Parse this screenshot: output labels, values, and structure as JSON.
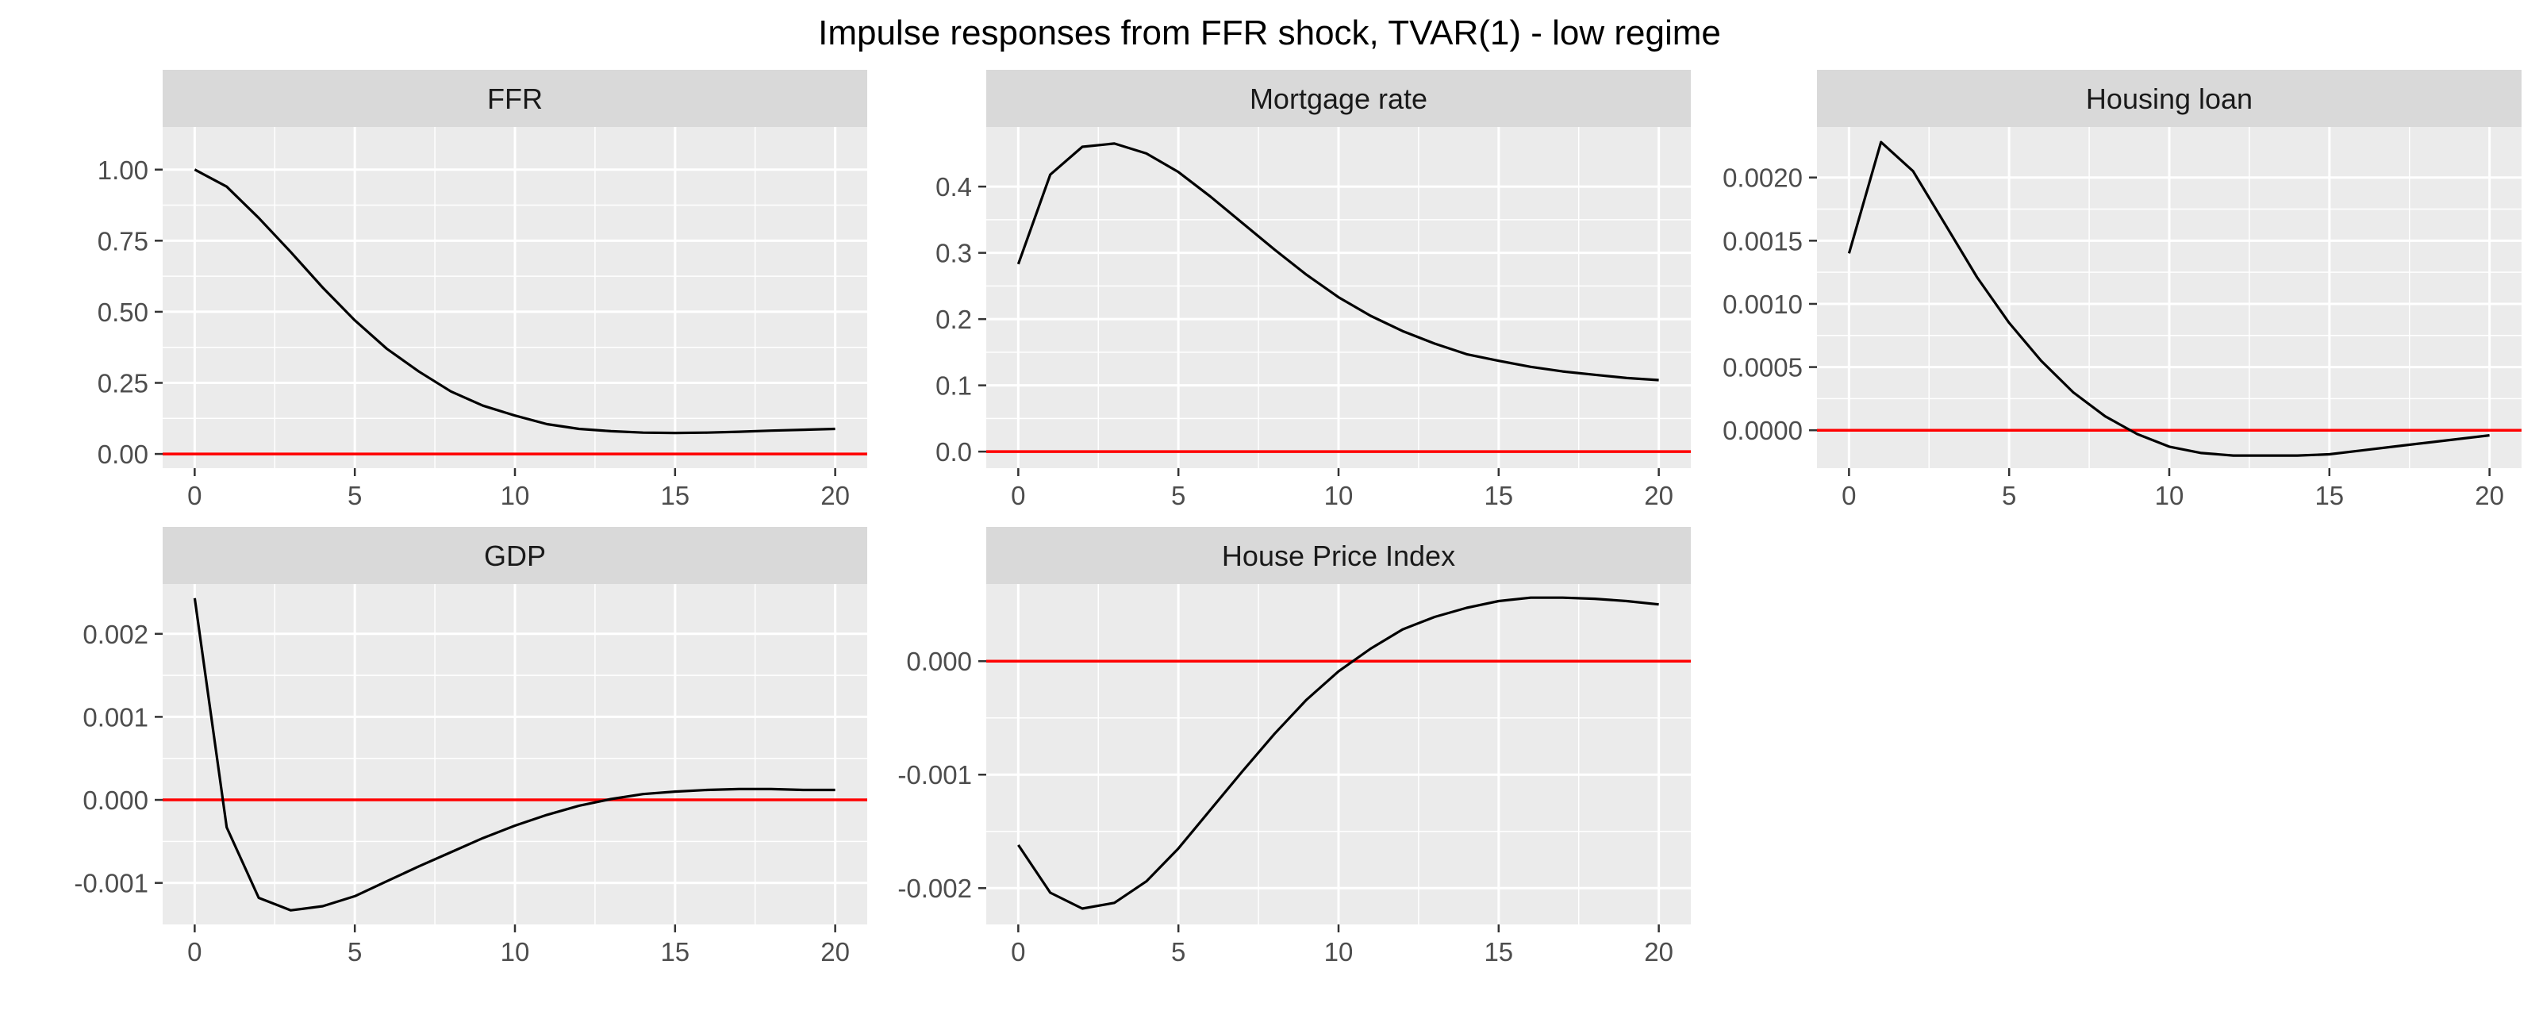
{
  "title": "Impulse responses from FFR shock, TVAR(1) - low regime",
  "colors": {
    "panel_background": "#EBEBEB",
    "strip_background": "#D9D9D9",
    "grid": "#FFFFFF",
    "line": "#000000",
    "zero_line": "#FF0000",
    "tick_text": "#4D4D4D",
    "strip_text": "#1A1A1A"
  },
  "chart_data": [
    {
      "type": "line",
      "facet": "FFR",
      "x": [
        0,
        1,
        2,
        3,
        4,
        5,
        6,
        7,
        8,
        9,
        10,
        11,
        12,
        13,
        14,
        15,
        16,
        17,
        18,
        19,
        20
      ],
      "values": [
        1.0,
        0.94,
        0.83,
        0.71,
        0.585,
        0.47,
        0.37,
        0.29,
        0.22,
        0.17,
        0.135,
        0.105,
        0.088,
        0.08,
        0.075,
        0.074,
        0.075,
        0.078,
        0.082,
        0.085,
        0.088
      ],
      "xlim": [
        -1,
        21
      ],
      "ylim": [
        -0.05,
        1.15
      ],
      "yticks": [
        0.0,
        0.25,
        0.5,
        0.75,
        1.0
      ],
      "ytick_labels": [
        "0.00",
        "0.25",
        "0.50",
        "0.75",
        "1.00"
      ],
      "xticks": [
        0,
        5,
        10,
        15,
        20
      ],
      "xtick_labels": [
        "0",
        "5",
        "10",
        "15",
        "20"
      ],
      "hline": 0,
      "grid": true
    },
    {
      "type": "line",
      "facet": "Mortgage rate",
      "x": [
        0,
        1,
        2,
        3,
        4,
        5,
        6,
        7,
        8,
        9,
        10,
        11,
        12,
        13,
        14,
        15,
        16,
        17,
        18,
        19,
        20
      ],
      "values": [
        0.283,
        0.418,
        0.46,
        0.465,
        0.45,
        0.422,
        0.385,
        0.345,
        0.305,
        0.267,
        0.233,
        0.205,
        0.182,
        0.163,
        0.147,
        0.137,
        0.128,
        0.121,
        0.116,
        0.111,
        0.108
      ],
      "xlim": [
        -1,
        21
      ],
      "ylim": [
        -0.025,
        0.49
      ],
      "yticks": [
        0.0,
        0.1,
        0.2,
        0.3,
        0.4
      ],
      "ytick_labels": [
        "0.0",
        "0.1",
        "0.2",
        "0.3",
        "0.4"
      ],
      "xticks": [
        0,
        5,
        10,
        15,
        20
      ],
      "xtick_labels": [
        "0",
        "5",
        "10",
        "15",
        "20"
      ],
      "hline": 0,
      "grid": true
    },
    {
      "type": "line",
      "facet": "Housing loan",
      "x": [
        0,
        1,
        2,
        3,
        4,
        5,
        6,
        7,
        8,
        9,
        10,
        11,
        12,
        13,
        14,
        15,
        16,
        17,
        18,
        19,
        20
      ],
      "values": [
        0.0014,
        0.00228,
        0.00205,
        0.00163,
        0.00121,
        0.00085,
        0.00055,
        0.0003,
        0.00011,
        -3e-05,
        -0.00013,
        -0.00018,
        -0.0002,
        -0.0002,
        -0.0002,
        -0.00019,
        -0.00016,
        -0.00013,
        -0.0001,
        -7e-05,
        -4e-05
      ],
      "xlim": [
        -1,
        21
      ],
      "ylim": [
        -0.0003,
        0.0024
      ],
      "yticks": [
        0.0,
        0.0005,
        0.001,
        0.0015,
        0.002
      ],
      "ytick_labels": [
        "0.0000",
        "0.0005",
        "0.0010",
        "0.0015",
        "0.0020"
      ],
      "xticks": [
        0,
        5,
        10,
        15,
        20
      ],
      "xtick_labels": [
        "0",
        "5",
        "10",
        "15",
        "20"
      ],
      "hline": 0,
      "grid": true
    },
    {
      "type": "line",
      "facet": "GDP",
      "x": [
        0,
        1,
        2,
        3,
        4,
        5,
        6,
        7,
        8,
        9,
        10,
        11,
        12,
        13,
        14,
        15,
        16,
        17,
        18,
        19,
        20
      ],
      "values": [
        0.00243,
        -0.00033,
        -0.00118,
        -0.00133,
        -0.00128,
        -0.00116,
        -0.00098,
        -0.0008,
        -0.00063,
        -0.00046,
        -0.00031,
        -0.00018,
        -7e-05,
        1e-05,
        7e-05,
        0.0001,
        0.00012,
        0.00013,
        0.00013,
        0.00012,
        0.00012
      ],
      "xlim": [
        -1,
        21
      ],
      "ylim": [
        -0.0015,
        0.0026
      ],
      "yticks": [
        -0.001,
        0.0,
        0.001,
        0.002
      ],
      "ytick_labels": [
        "-0.001",
        "0.000",
        "0.001",
        "0.002"
      ],
      "xticks": [
        0,
        5,
        10,
        15,
        20
      ],
      "xtick_labels": [
        "0",
        "5",
        "10",
        "15",
        "20"
      ],
      "hline": 0,
      "grid": true
    },
    {
      "type": "line",
      "facet": "House Price Index",
      "x": [
        0,
        1,
        2,
        3,
        4,
        5,
        6,
        7,
        8,
        9,
        10,
        11,
        12,
        13,
        14,
        15,
        16,
        17,
        18,
        19,
        20
      ],
      "values": [
        -0.00162,
        -0.00204,
        -0.00218,
        -0.00213,
        -0.00194,
        -0.00165,
        -0.00131,
        -0.00097,
        -0.00064,
        -0.00034,
        -9e-05,
        0.00011,
        0.00028,
        0.00039,
        0.00047,
        0.00053,
        0.00056,
        0.00056,
        0.00055,
        0.00053,
        0.0005
      ],
      "xlim": [
        -1,
        21
      ],
      "ylim": [
        -0.00232,
        0.00068
      ],
      "yticks": [
        -0.002,
        -0.001,
        0.0
      ],
      "ytick_labels": [
        "-0.002",
        "-0.001",
        "0.000"
      ],
      "xticks": [
        0,
        5,
        10,
        15,
        20
      ],
      "xtick_labels": [
        "0",
        "5",
        "10",
        "15",
        "20"
      ],
      "hline": 0,
      "grid": true
    }
  ]
}
